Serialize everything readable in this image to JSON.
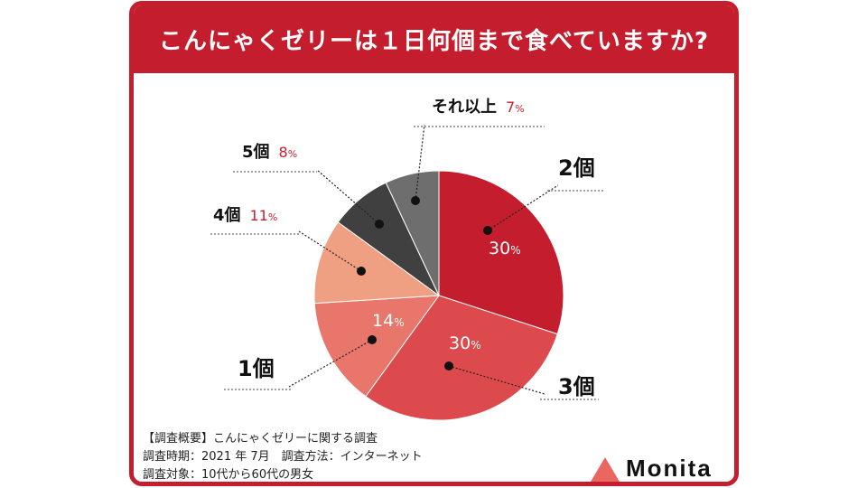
{
  "title": "こんにゃくゼリーは１日何個まで食べていますか?",
  "chart_data": {
    "type": "pie",
    "title": "こんにゃくゼリーは１日何個まで食べていますか?",
    "unit": "%",
    "slices": [
      {
        "label": "2個",
        "value": 30,
        "color": "#c41e2e"
      },
      {
        "label": "3個",
        "value": 30,
        "color": "#dc4a4e"
      },
      {
        "label": "1個",
        "value": 14,
        "color": "#e8766a"
      },
      {
        "label": "4個",
        "value": 11,
        "color": "#f0a082"
      },
      {
        "label": "5個",
        "value": 8,
        "color": "#404040"
      },
      {
        "label": "それ以上",
        "value": 7,
        "color": "#6e6e6e"
      }
    ]
  },
  "notes": {
    "line1": "【調査概要】こんにゃくゼリーに関する調査",
    "line2": "調査時期：2021 年 7月　調査方法：インターネット",
    "line3": "調査対象：10代から60代の男女"
  },
  "logo": {
    "text": "Monita",
    "color": "#e9675f"
  }
}
